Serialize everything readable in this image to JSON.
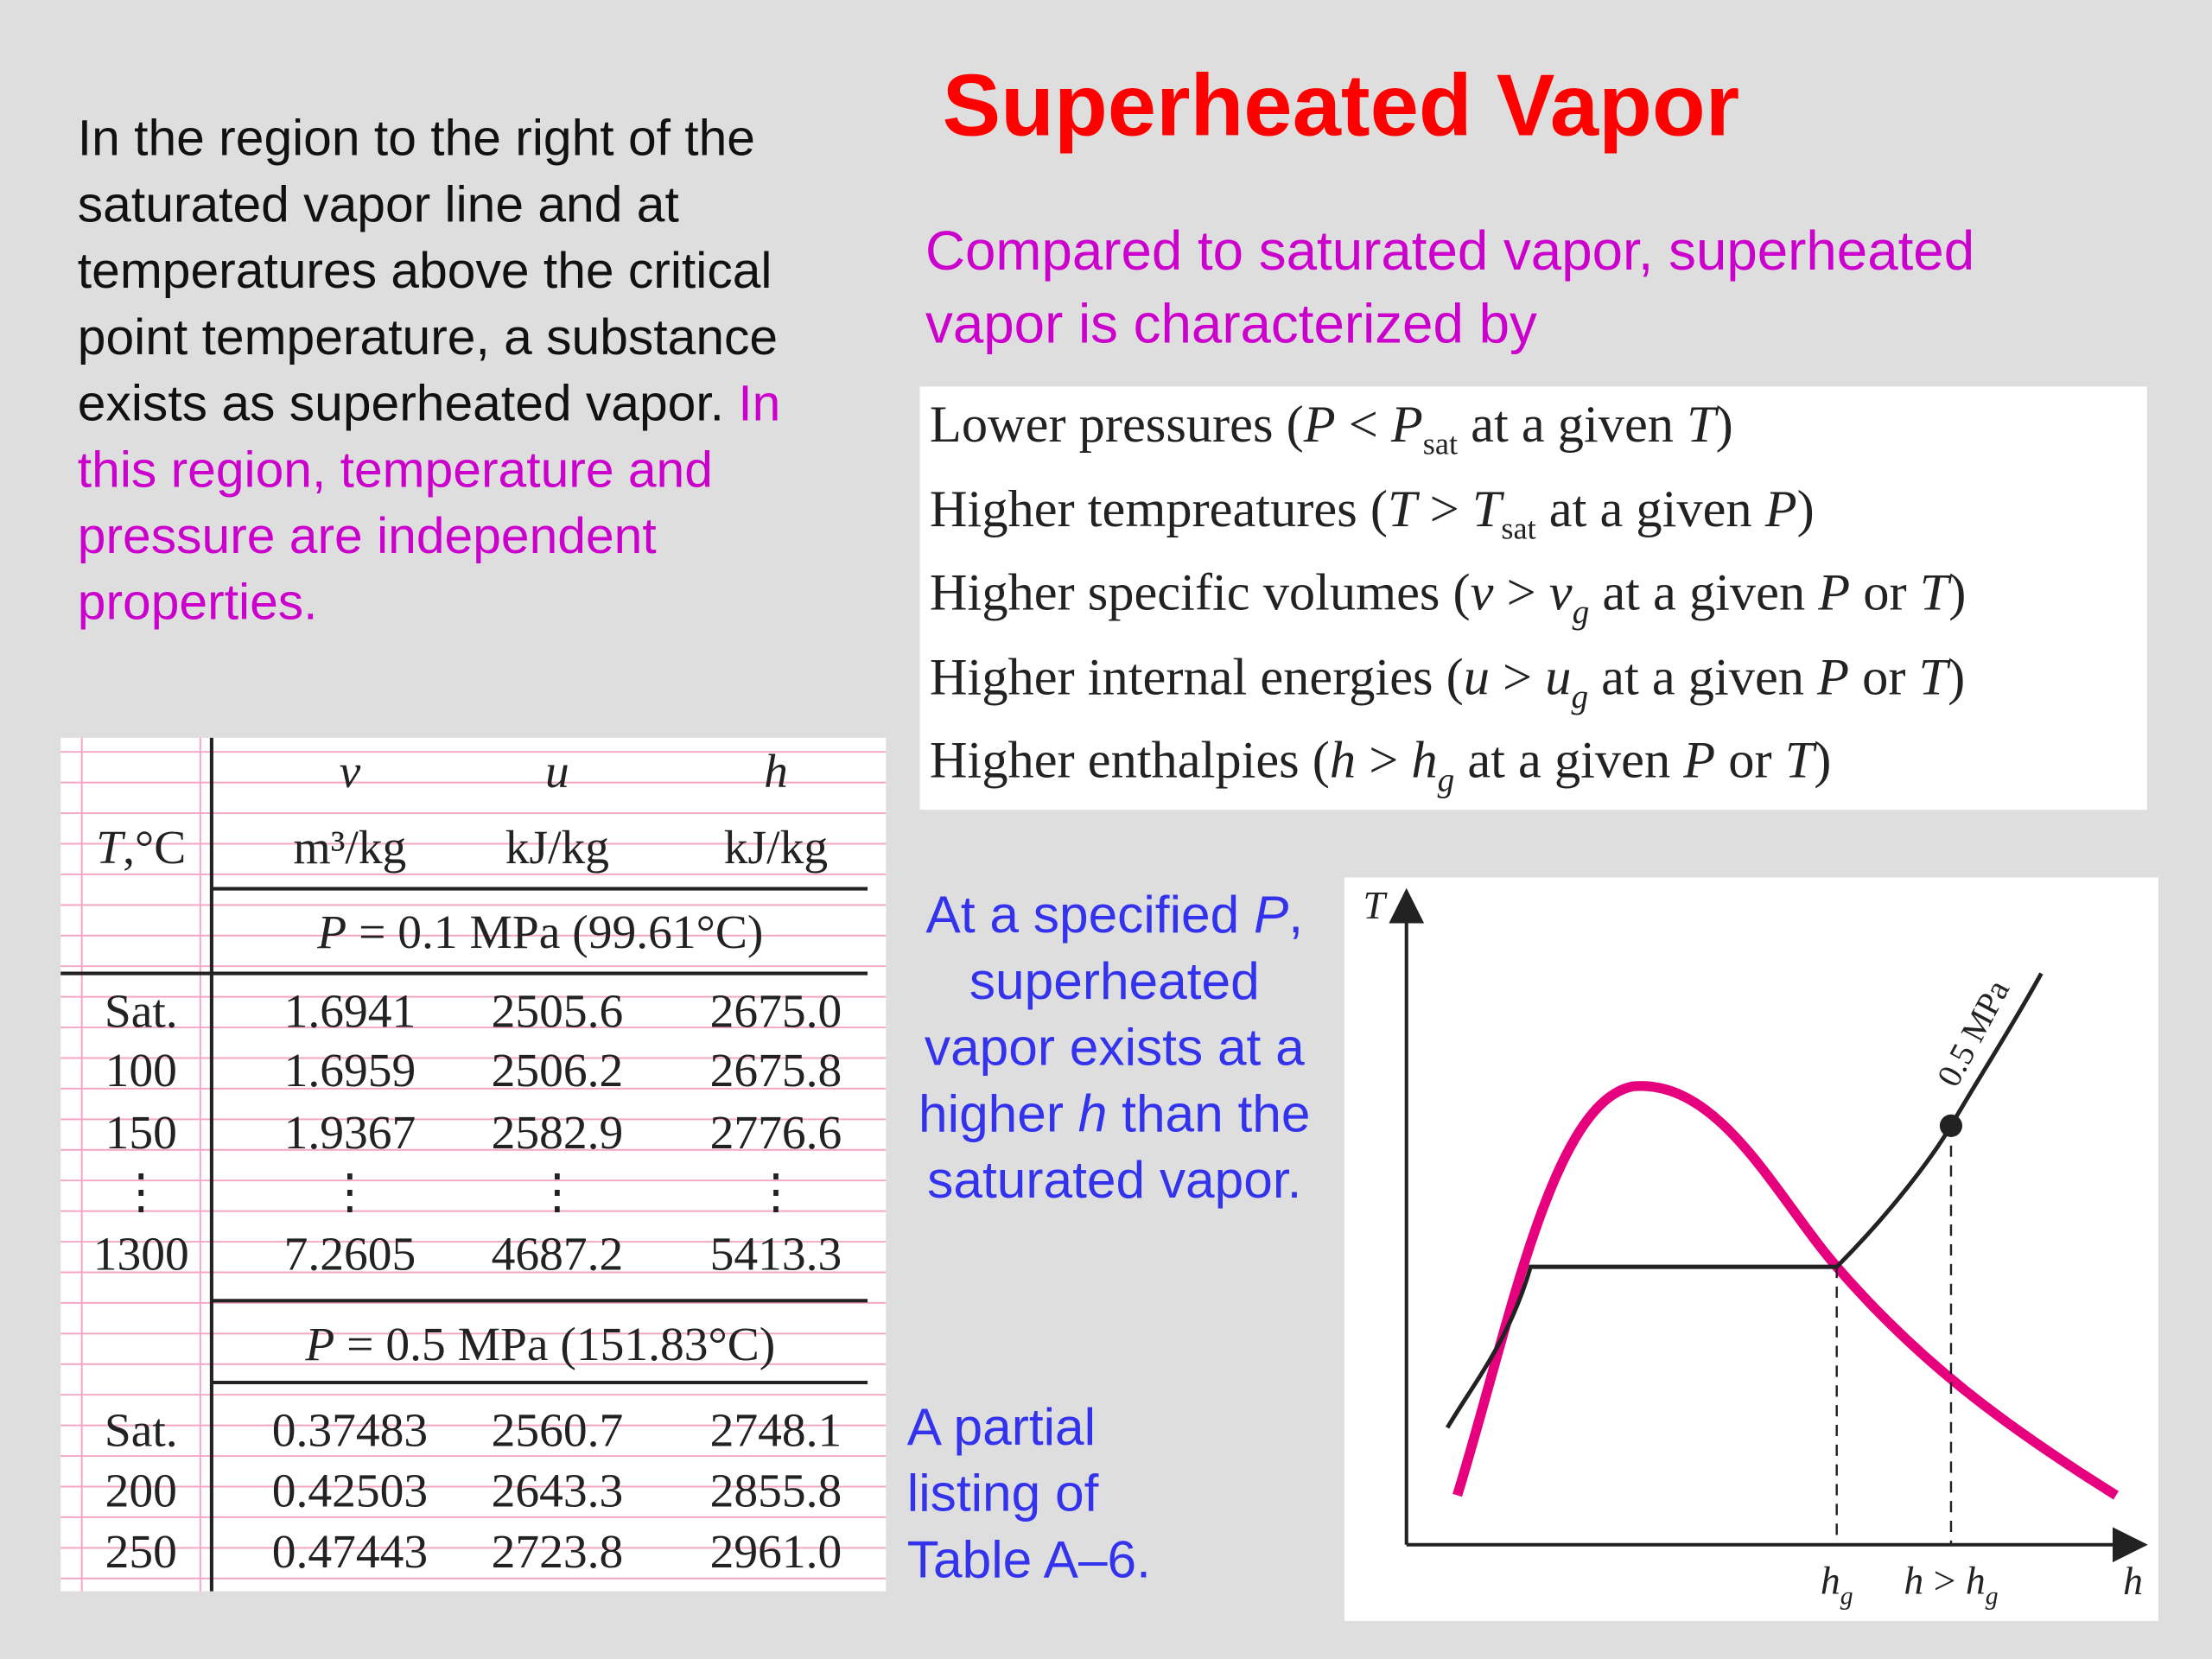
{
  "title": "Superheated Vapor",
  "intro": [
    {
      "text": "In the region to the right of the saturated vapor line and at temperatures above the critical point temperature, a substance exists as superheated vapor. ",
      "color": "#111111"
    },
    {
      "text": "In this region, temperature and pressure are independent properties.",
      "color": "#cc00cc"
    }
  ],
  "subtitle": "Compared to saturated vapor, superheated vapor is characterized by",
  "properties": [
    [
      {
        "text": "Lower pressures ("
      },
      {
        "text": "P",
        "style": "italic"
      },
      {
        "text": " < "
      },
      {
        "text": "P",
        "style": "italic"
      },
      {
        "text": "sat",
        "style": "sub"
      },
      {
        "text": " at a given "
      },
      {
        "text": "T",
        "style": "italic"
      },
      {
        "text": ")"
      }
    ],
    [
      {
        "text": "Higher tempreatures ("
      },
      {
        "text": "T",
        "style": "italic"
      },
      {
        "text": " > "
      },
      {
        "text": "T",
        "style": "italic"
      },
      {
        "text": "sat",
        "style": "sub"
      },
      {
        "text": " at a given "
      },
      {
        "text": "P",
        "style": "italic"
      },
      {
        "text": ")"
      }
    ],
    [
      {
        "text": "Higher specific volumes ("
      },
      {
        "text": "v",
        "style": "italic"
      },
      {
        "text": " > "
      },
      {
        "text": "v",
        "style": "italic"
      },
      {
        "text": "g",
        "style": "sub-italic"
      },
      {
        "text": " at a given "
      },
      {
        "text": "P",
        "style": "italic"
      },
      {
        "text": " or "
      },
      {
        "text": "T",
        "style": "italic"
      },
      {
        "text": ")"
      }
    ],
    [
      {
        "text": "Higher internal energies ("
      },
      {
        "text": "u",
        "style": "italic"
      },
      {
        "text": " > "
      },
      {
        "text": "u",
        "style": "italic"
      },
      {
        "text": "g",
        "style": "sub-italic"
      },
      {
        "text": " at a given "
      },
      {
        "text": "P",
        "style": "italic"
      },
      {
        "text": " or "
      },
      {
        "text": "T",
        "style": "italic"
      },
      {
        "text": ")"
      }
    ],
    [
      {
        "text": "Higher enthalpies ("
      },
      {
        "text": "h",
        "style": "italic"
      },
      {
        "text": " > "
      },
      {
        "text": "h",
        "style": "italic"
      },
      {
        "text": "g",
        "style": "sub-italic"
      },
      {
        "text": " at a given "
      },
      {
        "text": "P",
        "style": "italic"
      },
      {
        "text": " or "
      },
      {
        "text": "T",
        "style": "italic"
      },
      {
        "text": ")"
      }
    ]
  ],
  "table": {
    "symbols": [
      "v",
      "u",
      "h"
    ],
    "header": [
      [
        {
          "text": "T",
          "style": "italic"
        },
        {
          "text": ",°C"
        }
      ],
      [
        {
          "text": "m³/kg"
        }
      ],
      [
        {
          "text": "kJ/kg"
        }
      ],
      [
        {
          "text": "kJ/kg"
        }
      ]
    ],
    "sections": [
      {
        "label": [
          {
            "text": "P",
            "style": "italic"
          },
          {
            "text": " = 0.1 MPa (99.61°C)"
          }
        ],
        "rows": [
          [
            "Sat.",
            "1.6941",
            "2505.6",
            "2675.0"
          ],
          [
            "100",
            "1.6959",
            "2506.2",
            "2675.8"
          ],
          [
            "150",
            "1.9367",
            "2582.9",
            "2776.6"
          ],
          [
            "⋮",
            "⋮",
            "⋮",
            "⋮"
          ],
          [
            "1300",
            "7.2605",
            "4687.2",
            "5413.3"
          ]
        ]
      },
      {
        "label": [
          {
            "text": "P",
            "style": "italic"
          },
          {
            "text": " = 0.5 MPa (151.83°C)"
          }
        ],
        "rows": [
          [
            "Sat.",
            "0.37483",
            "2560.7",
            "2748.1"
          ],
          [
            "200",
            "0.42503",
            "2643.3",
            "2855.8"
          ],
          [
            "250",
            "0.47443",
            "2723.8",
            "2961.0"
          ]
        ]
      }
    ]
  },
  "note": [
    {
      "text": "At a specified "
    },
    {
      "text": "P",
      "style": "italic"
    },
    {
      "text": ", superheated vapor exists at a higher "
    },
    {
      "text": "h",
      "style": "italic"
    },
    {
      "text": " than the saturated vapor."
    }
  ],
  "caption": "A partial listing of Table A–6.",
  "diagram": {
    "y_axis": "T",
    "x_axis": "h",
    "isobar": "0.5 MPa",
    "tick_labels": [
      [
        {
          "text": "h",
          "style": "italic"
        },
        {
          "text": "g",
          "style": "sub-italic"
        }
      ],
      [
        {
          "text": "h",
          "style": "italic"
        },
        {
          "text": " > "
        },
        {
          "text": "h",
          "style": "italic"
        },
        {
          "text": "g",
          "style": "sub-italic"
        }
      ]
    ]
  }
}
